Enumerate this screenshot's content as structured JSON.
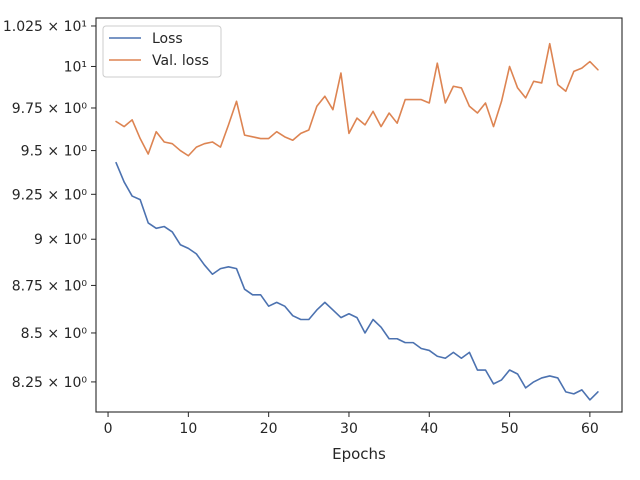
{
  "chart_data": {
    "type": "line",
    "title": "",
    "xlabel": "Epochs",
    "ylabel": "",
    "y_scale": "log",
    "grid": false,
    "legend_position": "top-left",
    "xlim": [
      -1.5,
      64
    ],
    "ylim": [
      8.1,
      10.3
    ],
    "x_ticks": [
      0,
      10,
      20,
      30,
      40,
      50,
      60
    ],
    "x_tick_labels": [
      "0",
      "10",
      "20",
      "30",
      "40",
      "50",
      "60"
    ],
    "y_ticks": [
      8.25,
      8.5,
      8.75,
      9.0,
      9.25,
      9.5,
      9.75,
      10.0,
      10.25
    ],
    "y_tick_labels": [
      "8.25 × 10⁰",
      "8.5 × 10⁰",
      "8.75 × 10⁰",
      "9 × 10⁰",
      "9.25 × 10⁰",
      "9.5 × 10⁰",
      "9.75 × 10⁰",
      "10¹",
      "1.025 × 10¹"
    ],
    "x": [
      1,
      2,
      3,
      4,
      5,
      6,
      7,
      8,
      9,
      10,
      11,
      12,
      13,
      14,
      15,
      16,
      17,
      18,
      19,
      20,
      21,
      22,
      23,
      24,
      25,
      26,
      27,
      28,
      29,
      30,
      31,
      32,
      33,
      34,
      35,
      36,
      37,
      38,
      39,
      40,
      41,
      42,
      43,
      44,
      45,
      46,
      47,
      48,
      49,
      50,
      51,
      52,
      53,
      54,
      55,
      56,
      57,
      58,
      59,
      60,
      61
    ],
    "series": [
      {
        "name": "Loss",
        "color": "#4c72b0",
        "values": [
          9.43,
          9.32,
          9.24,
          9.22,
          9.09,
          9.06,
          9.07,
          9.04,
          8.97,
          8.95,
          8.92,
          8.86,
          8.81,
          8.84,
          8.85,
          8.84,
          8.73,
          8.7,
          8.7,
          8.64,
          8.66,
          8.64,
          8.59,
          8.57,
          8.57,
          8.62,
          8.66,
          8.62,
          8.58,
          8.6,
          8.58,
          8.5,
          8.57,
          8.53,
          8.47,
          8.47,
          8.45,
          8.45,
          8.42,
          8.41,
          8.38,
          8.37,
          8.4,
          8.37,
          8.4,
          8.31,
          8.31,
          8.24,
          8.26,
          8.31,
          8.29,
          8.22,
          8.25,
          8.27,
          8.28,
          8.27,
          8.2,
          8.19,
          8.21,
          8.16,
          8.2
        ]
      },
      {
        "name": "Val. loss",
        "color": "#dd8452",
        "values": [
          9.67,
          9.64,
          9.68,
          9.57,
          9.48,
          9.61,
          9.55,
          9.54,
          9.5,
          9.47,
          9.52,
          9.54,
          9.55,
          9.52,
          9.65,
          9.79,
          9.59,
          9.58,
          9.57,
          9.57,
          9.61,
          9.58,
          9.56,
          9.6,
          9.62,
          9.76,
          9.82,
          9.74,
          9.96,
          9.6,
          9.69,
          9.65,
          9.73,
          9.64,
          9.72,
          9.66,
          9.8,
          9.8,
          9.8,
          9.78,
          10.02,
          9.78,
          9.88,
          9.87,
          9.76,
          9.72,
          9.78,
          9.64,
          9.79,
          10.0,
          9.87,
          9.81,
          9.91,
          9.9,
          10.14,
          9.89,
          9.85,
          9.97,
          9.99,
          10.03,
          9.98
        ]
      }
    ]
  }
}
